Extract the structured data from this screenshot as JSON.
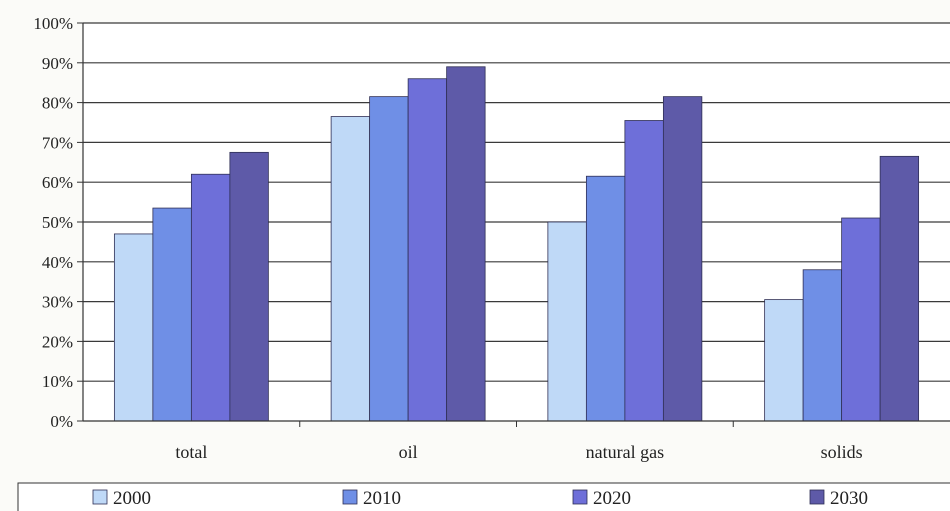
{
  "chart_data": {
    "type": "bar",
    "title": "",
    "xlabel": "",
    "ylabel": "",
    "categories": [
      "total",
      "oil",
      "natural gas",
      "solids"
    ],
    "series": [
      {
        "name": "2000",
        "values": [
          47,
          76.5,
          50,
          30.5
        ],
        "color": "#bfd9f7"
      },
      {
        "name": "2010",
        "values": [
          53.5,
          81.5,
          61.5,
          38
        ],
        "color": "#6f8fe6"
      },
      {
        "name": "2020",
        "values": [
          62,
          86,
          75.5,
          51
        ],
        "color": "#6e6fd9"
      },
      {
        "name": "2030",
        "values": [
          67.5,
          89,
          81.5,
          66.5
        ],
        "color": "#5e5aa8"
      }
    ],
    "ylim": [
      0,
      100
    ],
    "yticks": [
      0,
      10,
      20,
      30,
      40,
      50,
      60,
      70,
      80,
      90,
      100
    ],
    "ytick_labels": [
      "0%",
      "10%",
      "20%",
      "30%",
      "40%",
      "50%",
      "60%",
      "70%",
      "80%",
      "90%",
      "100%"
    ],
    "grid": true,
    "legend_position": "bottom"
  }
}
